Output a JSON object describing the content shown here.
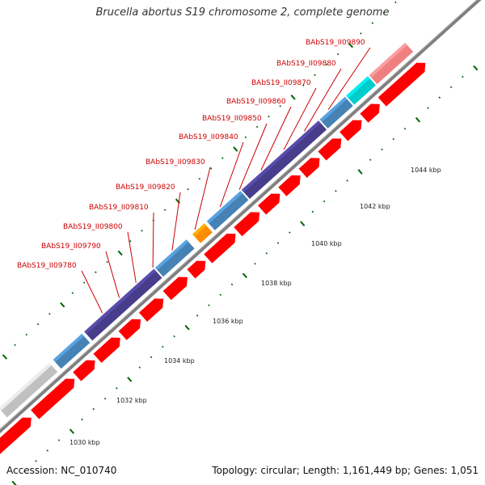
{
  "title": "Brucella abortus S19 chromosome 2, complete genome",
  "footer": {
    "accession": "Accession: NC_010740",
    "topology": "Topology: circular; Length: 1,161,449 bp; Genes: 1,051"
  },
  "colors": {
    "forward_cds": "#4682b4",
    "forward_cds_dark": "#483d8b",
    "reverse_cds": "#ff0000",
    "highlight_orange": "#ff8c00",
    "highlight_cyan": "#00cccc",
    "highlight_pink": "#f08080",
    "pseudo_gray": "#c0c0c0",
    "far_blue": "#0000ee",
    "backbone": "#808080",
    "tick": "#006400",
    "label_red": "#cc0000"
  },
  "locus_labels": [
    "BAbS19_II09780",
    "BAbS19_II09790",
    "BAbS19_II09800",
    "BAbS19_II09810",
    "BAbS19_II09820",
    "BAbS19_II09830",
    "BAbS19_II09840",
    "BAbS19_II09850",
    "BAbS19_II09860",
    "BAbS19_II09870",
    "BAbS19_II09880",
    "BAbS19_II09890"
  ],
  "scale_labels": [
    "1030 kbp",
    "1032 kbp",
    "1034 kbp",
    "1036 kbp",
    "1038 kbp",
    "1040 kbp",
    "1042 kbp",
    "1044 kbp"
  ]
}
